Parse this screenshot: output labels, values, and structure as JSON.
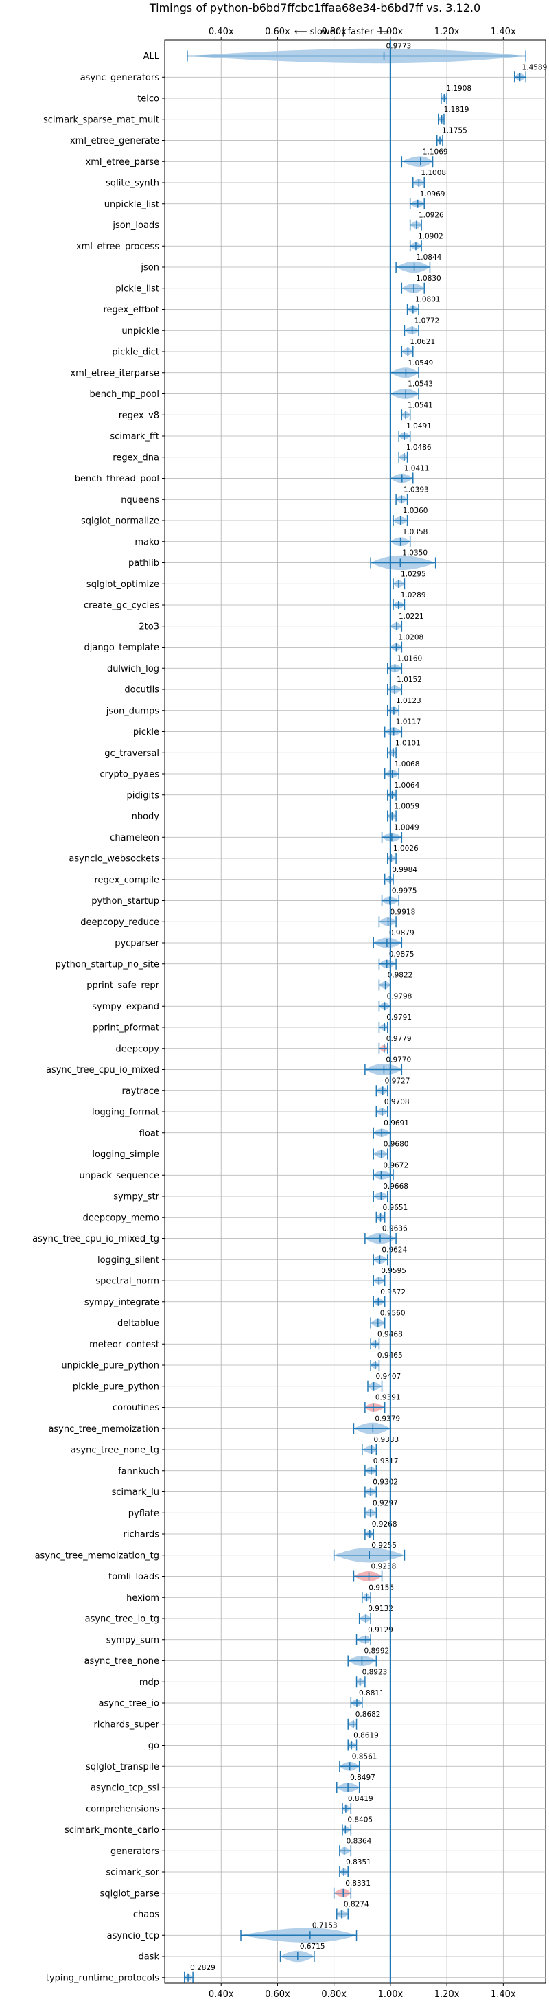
{
  "chart_data": {
    "type": "violin",
    "title": "Timings of python-b6bd7ffcbc1ffaa68e34-b6bd7ff vs. 3.12.0",
    "axis_note": "⟵ slower | faster ⟶",
    "xlim": [
      0.2,
      1.55
    ],
    "x_ticks": [
      0.4,
      0.6,
      0.8,
      1.0,
      1.2,
      1.4
    ],
    "x_tick_labels": [
      "0.40x",
      "0.60x",
      "0.80x",
      "1.00x",
      "1.20x",
      "1.40x"
    ],
    "reference_line": 1.0,
    "grid": true,
    "colors": {
      "faster": "#1f77b4",
      "slower": "#d62728",
      "fill": "#a6c8e6",
      "fill_slow": "#f2a7a8",
      "grid": "#b0b0b0"
    },
    "categories": [
      "ALL",
      "async_generators",
      "telco",
      "scimark_sparse_mat_mult",
      "xml_etree_generate",
      "xml_etree_parse",
      "sqlite_synth",
      "unpickle_list",
      "json_loads",
      "xml_etree_process",
      "json",
      "pickle_list",
      "regex_effbot",
      "unpickle",
      "pickle_dict",
      "xml_etree_iterparse",
      "bench_mp_pool",
      "regex_v8",
      "scimark_fft",
      "regex_dna",
      "bench_thread_pool",
      "nqueens",
      "sqlglot_normalize",
      "mako",
      "pathlib",
      "sqlglot_optimize",
      "create_gc_cycles",
      "2to3",
      "django_template",
      "dulwich_log",
      "docutils",
      "json_dumps",
      "pickle",
      "gc_traversal",
      "crypto_pyaes",
      "pidigits",
      "nbody",
      "chameleon",
      "asyncio_websockets",
      "regex_compile",
      "python_startup",
      "deepcopy_reduce",
      "pycparser",
      "python_startup_no_site",
      "pprint_safe_repr",
      "sympy_expand",
      "pprint_pformat",
      "deepcopy",
      "async_tree_cpu_io_mixed",
      "raytrace",
      "logging_format",
      "float",
      "logging_simple",
      "unpack_sequence",
      "sympy_str",
      "deepcopy_memo",
      "async_tree_cpu_io_mixed_tg",
      "logging_silent",
      "spectral_norm",
      "sympy_integrate",
      "deltablue",
      "meteor_contest",
      "unpickle_pure_python",
      "pickle_pure_python",
      "coroutines",
      "async_tree_memoization",
      "async_tree_none_tg",
      "fannkuch",
      "scimark_lu",
      "pyflate",
      "richards",
      "async_tree_memoization_tg",
      "tomli_loads",
      "hexiom",
      "async_tree_io_tg",
      "sympy_sum",
      "async_tree_none",
      "mdp",
      "async_tree_io",
      "richards_super",
      "go",
      "sqlglot_transpile",
      "asyncio_tcp_ssl",
      "comprehensions",
      "scimark_monte_carlo",
      "generators",
      "scimark_sor",
      "sqlglot_parse",
      "chaos",
      "asyncio_tcp",
      "dask",
      "typing_runtime_protocols"
    ],
    "values": [
      0.9773,
      1.4589,
      1.1908,
      1.1819,
      1.1755,
      1.1069,
      1.1008,
      1.0969,
      1.0926,
      1.0902,
      1.0844,
      1.083,
      1.0801,
      1.0772,
      1.0621,
      1.0549,
      1.0543,
      1.0541,
      1.0491,
      1.0486,
      1.0411,
      1.0393,
      1.036,
      1.0358,
      1.035,
      1.0295,
      1.0289,
      1.0221,
      1.0208,
      1.016,
      1.0152,
      1.0123,
      1.0117,
      1.0101,
      1.0068,
      1.0064,
      1.0059,
      1.0049,
      1.0026,
      0.9984,
      0.9975,
      0.9918,
      0.9879,
      0.9875,
      0.9822,
      0.9798,
      0.9791,
      0.9779,
      0.977,
      0.9727,
      0.9708,
      0.9691,
      0.968,
      0.9672,
      0.9668,
      0.9651,
      0.9636,
      0.9624,
      0.9595,
      0.9572,
      0.956,
      0.9468,
      0.9465,
      0.9407,
      0.9391,
      0.9379,
      0.9333,
      0.9317,
      0.9302,
      0.9297,
      0.9268,
      0.9255,
      0.9238,
      0.9156,
      0.9132,
      0.9129,
      0.8992,
      0.8923,
      0.8811,
      0.8682,
      0.8619,
      0.8561,
      0.8497,
      0.8419,
      0.8405,
      0.8364,
      0.8351,
      0.8331,
      0.8274,
      0.7153,
      0.6715,
      0.2829
    ],
    "labels": [
      "0.9773",
      "1.4589",
      "1.1908",
      "1.1819",
      "1.1755",
      "1.1069",
      "1.1008",
      "1.0969",
      "1.0926",
      "1.0902",
      "1.0844",
      "1.0830",
      "1.0801",
      "1.0772",
      "1.0621",
      "1.0549",
      "1.0543",
      "1.0541",
      "1.0491",
      "1.0486",
      "1.0411",
      "1.0393",
      "1.0360",
      "1.0358",
      "1.0350",
      "1.0295",
      "1.0289",
      "1.0221",
      "1.0208",
      "1.0160",
      "1.0152",
      "1.0123",
      "1.0117",
      "1.0101",
      "1.0068",
      "1.0064",
      "1.0059",
      "1.0049",
      "1.0026",
      "0.9984",
      "0.9975",
      "0.9918",
      "0.9879",
      "0.9875",
      "0.9822",
      "0.9798",
      "0.9791",
      "0.9779",
      "0.9770",
      "0.9727",
      "0.9708",
      "0.9691",
      "0.9680",
      "0.9672",
      "0.9668",
      "0.9651",
      "0.9636",
      "0.9624",
      "0.9595",
      "0.9572",
      "0.9560",
      "0.9468",
      "0.9465",
      "0.9407",
      "0.9391",
      "0.9379",
      "0.9333",
      "0.9317",
      "0.9302",
      "0.9297",
      "0.9268",
      "0.9255",
      "0.9238",
      "0.9156",
      "0.9132",
      "0.9129",
      "0.8992",
      "0.8923",
      "0.8811",
      "0.8682",
      "0.8619",
      "0.8561",
      "0.8497",
      "0.8419",
      "0.8405",
      "0.8364",
      "0.8351",
      "0.8331",
      "0.8274",
      "0.7153",
      "0.6715",
      "0.2829"
    ],
    "ranges": [
      [
        0.28,
        1.48
      ],
      [
        1.44,
        1.48
      ],
      [
        1.18,
        1.2
      ],
      [
        1.17,
        1.19
      ],
      [
        1.165,
        1.185
      ],
      [
        1.04,
        1.15
      ],
      [
        1.08,
        1.12
      ],
      [
        1.07,
        1.12
      ],
      [
        1.07,
        1.11
      ],
      [
        1.07,
        1.11
      ],
      [
        1.02,
        1.14
      ],
      [
        1.04,
        1.12
      ],
      [
        1.06,
        1.1
      ],
      [
        1.05,
        1.1
      ],
      [
        1.04,
        1.08
      ],
      [
        1.0,
        1.1
      ],
      [
        1.0,
        1.1
      ],
      [
        1.04,
        1.07
      ],
      [
        1.03,
        1.07
      ],
      [
        1.03,
        1.06
      ],
      [
        1.0,
        1.08
      ],
      [
        1.02,
        1.06
      ],
      [
        1.01,
        1.06
      ],
      [
        1.0,
        1.07
      ],
      [
        0.93,
        1.16
      ],
      [
        1.01,
        1.05
      ],
      [
        1.01,
        1.05
      ],
      [
        1.0,
        1.04
      ],
      [
        1.0,
        1.04
      ],
      [
        0.99,
        1.04
      ],
      [
        0.99,
        1.04
      ],
      [
        0.99,
        1.03
      ],
      [
        0.98,
        1.04
      ],
      [
        0.99,
        1.02
      ],
      [
        0.98,
        1.03
      ],
      [
        0.99,
        1.02
      ],
      [
        0.99,
        1.02
      ],
      [
        0.97,
        1.04
      ],
      [
        0.99,
        1.02
      ],
      [
        0.98,
        1.01
      ],
      [
        0.97,
        1.03
      ],
      [
        0.96,
        1.02
      ],
      [
        0.94,
        1.04
      ],
      [
        0.96,
        1.02
      ],
      [
        0.96,
        1.0
      ],
      [
        0.96,
        1.0
      ],
      [
        0.96,
        0.99
      ],
      [
        0.96,
        0.99
      ],
      [
        0.91,
        1.04
      ],
      [
        0.95,
        0.99
      ],
      [
        0.95,
        0.99
      ],
      [
        0.94,
        1.0
      ],
      [
        0.94,
        0.99
      ],
      [
        0.94,
        1.01
      ],
      [
        0.94,
        0.99
      ],
      [
        0.95,
        0.98
      ],
      [
        0.91,
        1.02
      ],
      [
        0.94,
        0.99
      ],
      [
        0.94,
        0.98
      ],
      [
        0.94,
        0.98
      ],
      [
        0.93,
        0.98
      ],
      [
        0.93,
        0.96
      ],
      [
        0.93,
        0.96
      ],
      [
        0.92,
        0.97
      ],
      [
        0.91,
        0.98
      ],
      [
        0.87,
        1.0
      ],
      [
        0.9,
        0.95
      ],
      [
        0.91,
        0.95
      ],
      [
        0.91,
        0.95
      ],
      [
        0.91,
        0.95
      ],
      [
        0.91,
        0.94
      ],
      [
        0.8,
        1.05
      ],
      [
        0.87,
        0.97
      ],
      [
        0.9,
        0.93
      ],
      [
        0.89,
        0.93
      ],
      [
        0.88,
        0.93
      ],
      [
        0.85,
        0.95
      ],
      [
        0.88,
        0.91
      ],
      [
        0.86,
        0.9
      ],
      [
        0.85,
        0.88
      ],
      [
        0.85,
        0.88
      ],
      [
        0.82,
        0.89
      ],
      [
        0.81,
        0.89
      ],
      [
        0.83,
        0.86
      ],
      [
        0.83,
        0.86
      ],
      [
        0.82,
        0.86
      ],
      [
        0.82,
        0.85
      ],
      [
        0.8,
        0.86
      ],
      [
        0.81,
        0.85
      ],
      [
        0.47,
        0.88
      ],
      [
        0.61,
        0.73
      ],
      [
        0.27,
        0.3
      ]
    ],
    "slow_highlight": [
      "deepcopy",
      "coroutines",
      "tomli_loads",
      "sqlglot_parse"
    ]
  }
}
